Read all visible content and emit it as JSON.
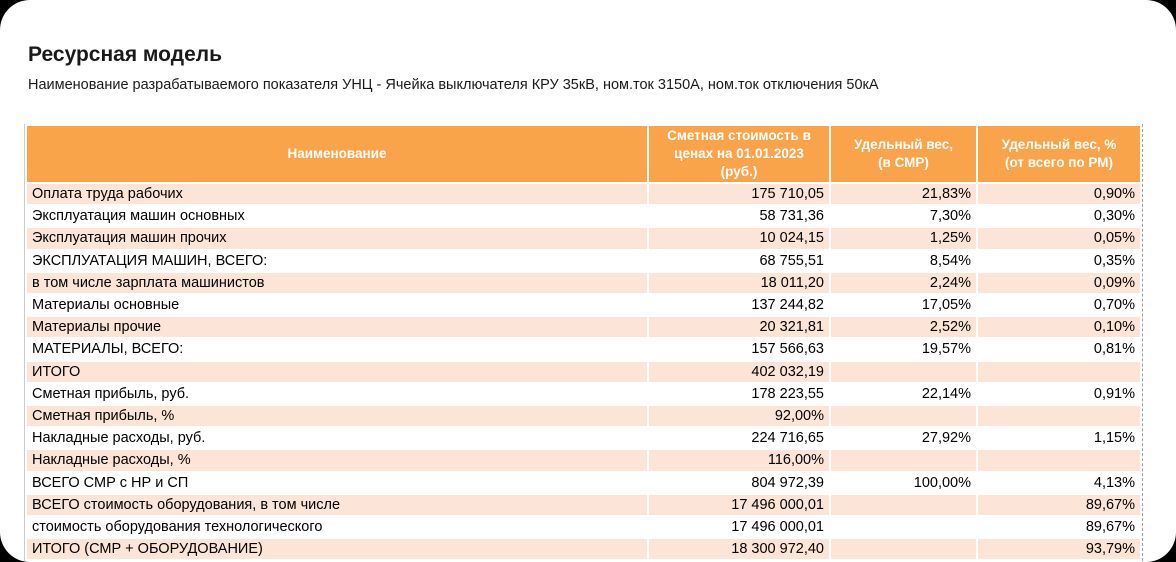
{
  "page": {
    "title": "Ресурсная модель",
    "subtitle": "Наименование разрабатываемого показателя УНЦ - Ячейка выключателя КРУ 35кВ, ном.ток 3150А, ном.ток отключения 50кА"
  },
  "colors": {
    "header_bg": "#F9A34A",
    "header_text": "#FFFFFF",
    "row_bg": "#FFFFFF",
    "row_alt_bg": "#FCE4D6",
    "text": "#000000"
  },
  "table": {
    "columns": [
      {
        "label": "Наименование"
      },
      {
        "label": "Сметная стоимость в\nценах на 01.01.2023\n(руб.)"
      },
      {
        "label": "Удельный вес,\n(в СМР)"
      },
      {
        "label": "Удельный вес, %\n(от всего по РМ)"
      }
    ],
    "rows": [
      {
        "name": "Оплата труда рабочих",
        "cost": "175 710,05",
        "weight_smr": "21,83%",
        "weight_rm": "0,90%"
      },
      {
        "name": "Эксплуатация машин основных",
        "cost": "58 731,36",
        "weight_smr": "7,30%",
        "weight_rm": "0,30%"
      },
      {
        "name": "Эксплуатация машин прочих",
        "cost": "10 024,15",
        "weight_smr": "1,25%",
        "weight_rm": "0,05%"
      },
      {
        "name": "ЭКСПЛУАТАЦИЯ МАШИН, ВСЕГО:",
        "cost": "68 755,51",
        "weight_smr": "8,54%",
        "weight_rm": "0,35%"
      },
      {
        "name": "в том числе зарплата машинистов",
        "cost": "18 011,20",
        "weight_smr": "2,24%",
        "weight_rm": "0,09%"
      },
      {
        "name": "Материалы основные",
        "cost": "137 244,82",
        "weight_smr": "17,05%",
        "weight_rm": "0,70%"
      },
      {
        "name": "Материалы прочие",
        "cost": "20 321,81",
        "weight_smr": "2,52%",
        "weight_rm": "0,10%"
      },
      {
        "name": "МАТЕРИАЛЫ, ВСЕГО:",
        "cost": "157 566,63",
        "weight_smr": "19,57%",
        "weight_rm": "0,81%"
      },
      {
        "name": "ИТОГО",
        "cost": "402 032,19",
        "weight_smr": "",
        "weight_rm": ""
      },
      {
        "name": "Сметная прибыль, руб.",
        "cost": "178 223,55",
        "weight_smr": "22,14%",
        "weight_rm": "0,91%"
      },
      {
        "name": "Сметная прибыль, %",
        "cost": "92,00%",
        "weight_smr": "",
        "weight_rm": ""
      },
      {
        "name": "Накладные расходы, руб.",
        "cost": "224 716,65",
        "weight_smr": "27,92%",
        "weight_rm": "1,15%"
      },
      {
        "name": "Накладные расходы, %",
        "cost": "116,00%",
        "weight_smr": "",
        "weight_rm": ""
      },
      {
        "name": "ВСЕГО СМР с НР и СП",
        "cost": "804 972,39",
        "weight_smr": "100,00%",
        "weight_rm": "4,13%"
      },
      {
        "name": "ВСЕГО стоимость оборудования, в том числе",
        "cost": "17 496 000,01",
        "weight_smr": "",
        "weight_rm": "89,67%"
      },
      {
        "name": "стоимость оборудования технологического",
        "cost": "17 496 000,01",
        "weight_smr": "",
        "weight_rm": "89,67%"
      },
      {
        "name": "ИТОГО (СМР + ОБОРУДОВАНИЕ)",
        "cost": "18 300 972,40",
        "weight_smr": "",
        "weight_rm": "93,79%"
      }
    ]
  }
}
